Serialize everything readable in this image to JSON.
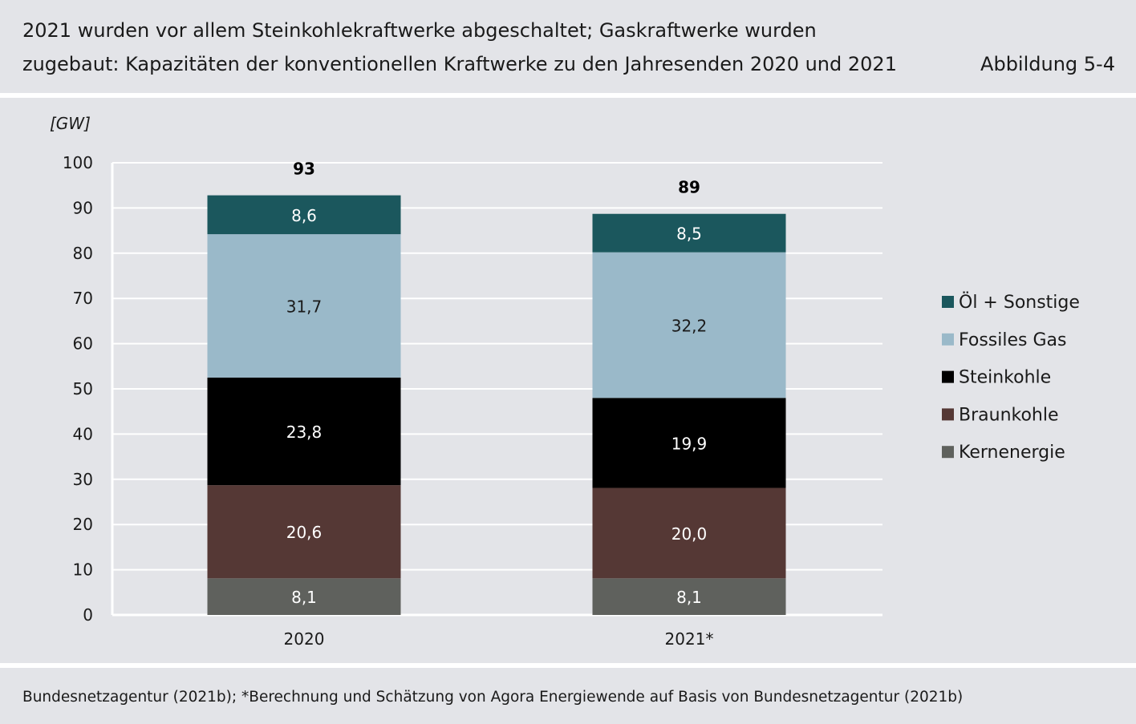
{
  "header": {
    "title_line_1": "2021 wurden vor allem Steinkohlekraftwerke abgeschaltet; Gaskraftwerke wurden",
    "title_line_2": "zugebaut: Kapazitäten der konventionellen Kraftwerke zu den Jahresenden 2020 und 2021",
    "figure_label": "Abbildung 5-4"
  },
  "footer": {
    "source": "Bundesnetzagentur (2021b); *Berechnung und Schätzung von Agora Energiewende auf Basis von Bundesnetzagentur (2021b)"
  },
  "chart_data": {
    "type": "bar",
    "stacked": true,
    "unit_label": "[GW]",
    "ylim": [
      0,
      100
    ],
    "yticks": [
      0,
      10,
      20,
      30,
      40,
      50,
      60,
      70,
      80,
      90,
      100
    ],
    "grid": true,
    "legend_position": "right",
    "categories": [
      "2020",
      "2021*"
    ],
    "totals": [
      "93",
      "89"
    ],
    "series": [
      {
        "name": "Kernenergie",
        "color": "#5f615d",
        "text_color": "#ffffff",
        "values": [
          8.1,
          8.1
        ],
        "labels": [
          "8,1",
          "8,1"
        ]
      },
      {
        "name": "Braunkohle",
        "color": "#553835",
        "text_color": "#ffffff",
        "values": [
          20.6,
          20.0
        ],
        "labels": [
          "20,6",
          "20,0"
        ]
      },
      {
        "name": "Steinkohle",
        "color": "#000000",
        "text_color": "#ffffff",
        "values": [
          23.8,
          19.9
        ],
        "labels": [
          "23,8",
          "19,9"
        ]
      },
      {
        "name": "Fossiles Gas",
        "color": "#9ab9c9",
        "text_color": "#1a1a1a",
        "values": [
          31.7,
          32.2
        ],
        "labels": [
          "31,7",
          "32,2"
        ]
      },
      {
        "name": "Öl + Sonstige",
        "color": "#1b575d",
        "text_color": "#ffffff",
        "values": [
          8.6,
          8.5
        ],
        "labels": [
          "8,6",
          "8,5"
        ]
      }
    ],
    "legend_order": [
      "Öl + Sonstige",
      "Fossiles Gas",
      "Steinkohle",
      "Braunkohle",
      "Kernenergie"
    ]
  }
}
